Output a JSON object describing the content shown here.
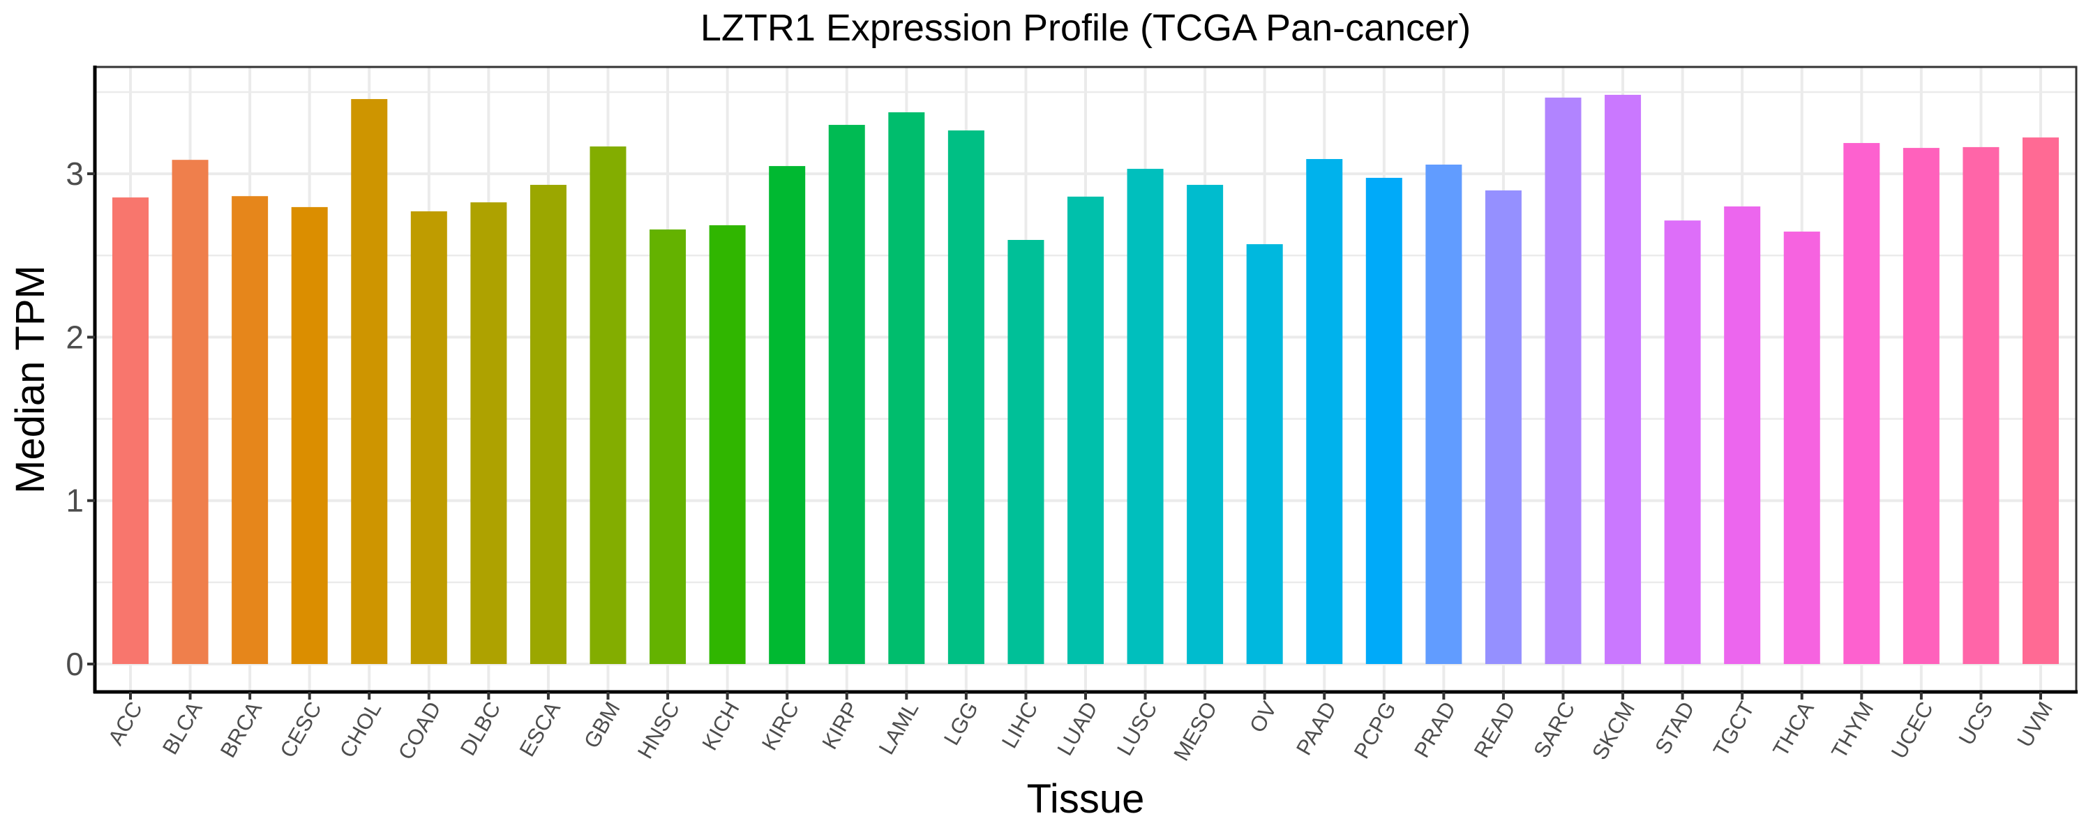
{
  "chart_data": {
    "type": "bar",
    "title": "LZTR1 Expression Profile (TCGA Pan-cancer)",
    "xlabel": "Tissue",
    "ylabel": "Median TPM",
    "ylim": [
      -0.17,
      3.6
    ],
    "yticks": [
      0,
      1,
      2,
      3
    ],
    "ytick_labels": [
      "0",
      "1",
      "2",
      "3"
    ],
    "grid": true,
    "legend": "none",
    "categories": [
      "ACC",
      "BLCA",
      "BRCA",
      "CESC",
      "CHOL",
      "COAD",
      "DLBC",
      "ESCA",
      "GBM",
      "HNSC",
      "KICH",
      "KIRC",
      "KIRP",
      "LAML",
      "LGG",
      "LIHC",
      "LUAD",
      "LUSC",
      "MESO",
      "OV",
      "PAAD",
      "PCPG",
      "PRAD",
      "READ",
      "SARC",
      "SKCM",
      "STAD",
      "TGCT",
      "THCA",
      "THYM",
      "UCEC",
      "UCS",
      "UVM"
    ],
    "values": [
      2.855,
      3.085,
      2.863,
      2.796,
      3.457,
      2.77,
      2.825,
      2.932,
      3.167,
      2.659,
      2.685,
      3.047,
      3.299,
      3.376,
      3.265,
      2.595,
      2.86,
      3.03,
      2.932,
      2.569,
      3.09,
      2.975,
      3.056,
      2.898,
      3.466,
      3.483,
      2.714,
      2.8,
      2.646,
      3.188,
      3.158,
      3.163,
      3.222
    ],
    "colors": [
      "#F8766D",
      "#EF7F4C",
      "#E6861B",
      "#DB8E00",
      "#CE9500",
      "#BF9C00",
      "#AEA200",
      "#9BA700",
      "#83AD00",
      "#64B200",
      "#30B600",
      "#00B931",
      "#00BB53",
      "#00BD6D",
      "#00BF84",
      "#00C098",
      "#00C0AB",
      "#00BFBD",
      "#00BCCE",
      "#00B8DE",
      "#00B2EC",
      "#00AAF9",
      "#619CFF",
      "#9590FF",
      "#B184FF",
      "#CA78FF",
      "#DD6EF9",
      "#EC66EE",
      "#F663E0",
      "#FD61CF",
      "#FF61BC",
      "#FF65A8",
      "#FF6A94"
    ]
  }
}
